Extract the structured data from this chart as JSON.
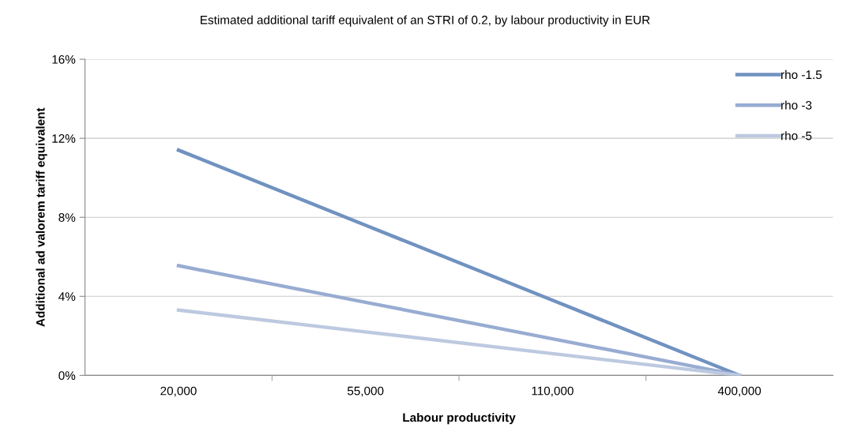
{
  "chart_data": {
    "type": "line",
    "title": "Estimated additional tariff equivalent of an STRI of 0.2, by labour productivity in EUR",
    "xlabel": "Labour productivity",
    "ylabel": "Additional ad valorem tariff equivalent",
    "categories": [
      "20,000",
      "55,000",
      "110,000",
      "400,000"
    ],
    "series": [
      {
        "name": "rho -1.5",
        "color": "#7092c0",
        "values": [
          11.4,
          7.6,
          3.8,
          0
        ]
      },
      {
        "name": "rho -3",
        "color": "#98acd2",
        "values": [
          5.55,
          3.7,
          1.85,
          0
        ]
      },
      {
        "name": "rho -5",
        "color": "#bdc9e0",
        "values": [
          3.3,
          2.2,
          1.1,
          0
        ]
      }
    ],
    "ylim": [
      0,
      16
    ],
    "yticks": [
      {
        "value": 0,
        "label": "0%"
      },
      {
        "value": 4,
        "label": "4%"
      },
      {
        "value": 8,
        "label": "8%"
      },
      {
        "value": 12,
        "label": "12%"
      },
      {
        "value": 16,
        "label": "16%"
      }
    ],
    "grid": "y",
    "legend": "top right",
    "marker": "none",
    "line_style": "solid"
  }
}
